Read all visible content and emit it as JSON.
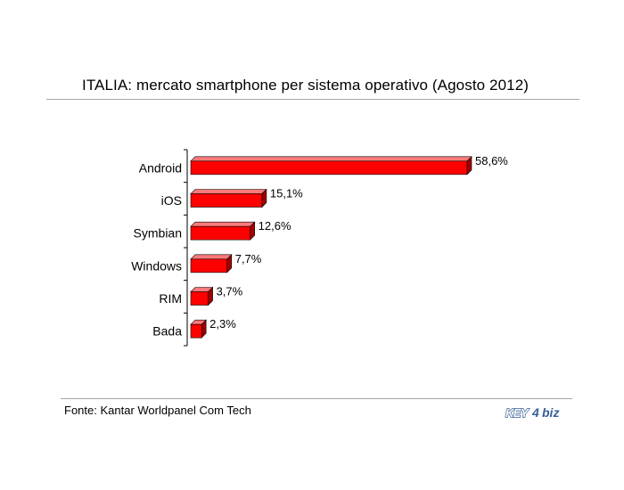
{
  "header": {
    "title": "ITALIA: mercato smartphone per sistema operativo (Agosto 2012)"
  },
  "footer": {
    "source": "Fonte: Kantar Worldpanel Com Tech",
    "logo_text_left": "KEY",
    "logo_text_digit": "4",
    "logo_text_right": "biz"
  },
  "colors": {
    "bar_front": "#ff0000",
    "bar_top": "#ff7a7a",
    "bar_side": "#a00000",
    "bar_outline": "#000000",
    "logo_blue": "#3a5f97"
  },
  "chart_data": {
    "type": "bar",
    "orientation": "horizontal",
    "title": "ITALIA: mercato smartphone per sistema operativo (Agosto 2012)",
    "categories": [
      "Android",
      "iOS",
      "Symbian",
      "Windows",
      "RIM",
      "Bada"
    ],
    "values": [
      58.6,
      15.1,
      12.6,
      7.7,
      3.7,
      2.3
    ],
    "value_labels": [
      "58,6%",
      "15,1%",
      "12,6%",
      "7,7%",
      "3,7%",
      "2,3%"
    ],
    "unit": "%",
    "xlim": [
      0,
      58.6
    ],
    "grid": false,
    "legend": "none",
    "style": "3d"
  }
}
